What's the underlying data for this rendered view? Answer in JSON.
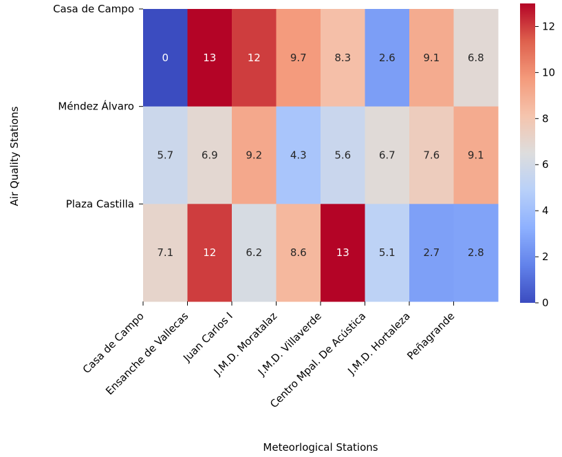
{
  "chart_data": {
    "type": "heatmap",
    "title": "",
    "xlabel": "Meteorlogical Stations",
    "ylabel": "Air Quality Stations",
    "x_categories": [
      "Casa de Campo",
      "Ensanche de Vallecas",
      "Juan Carlos I",
      "J.M.D. Moratalaz",
      "J.M.D. Villaverde",
      "Centro Mpal. De Acústica",
      "J.M.D. Hortaleza",
      "Peñagrande"
    ],
    "y_categories": [
      "Casa de Campo",
      "Méndez Álvaro",
      "Plaza Castilla"
    ],
    "values": [
      [
        0.0,
        13.0,
        12.0,
        9.7,
        8.3,
        2.6,
        9.1,
        6.8
      ],
      [
        5.7,
        6.9,
        9.2,
        4.3,
        5.6,
        6.7,
        7.6,
        9.1
      ],
      [
        7.1,
        12.0,
        6.2,
        8.6,
        13.0,
        5.1,
        2.7,
        2.8
      ]
    ],
    "labels": [
      [
        "0",
        "13",
        "12",
        "9.7",
        "8.3",
        "2.6",
        "9.1",
        "6.8"
      ],
      [
        "5.7",
        "6.9",
        "9.2",
        "4.3",
        "5.6",
        "6.7",
        "7.6",
        "9.1"
      ],
      [
        "7.1",
        "12",
        "6.2",
        "8.6",
        "13",
        "5.1",
        "2.7",
        "2.8"
      ]
    ],
    "colormap": "coolwarm",
    "colorbar": {
      "range": [
        0,
        13
      ],
      "ticks": [
        0,
        2,
        4,
        6,
        8,
        10,
        12
      ],
      "tick_labels": [
        "0",
        "2",
        "4",
        "6",
        "8",
        "10",
        "12"
      ]
    },
    "grid": false
  }
}
